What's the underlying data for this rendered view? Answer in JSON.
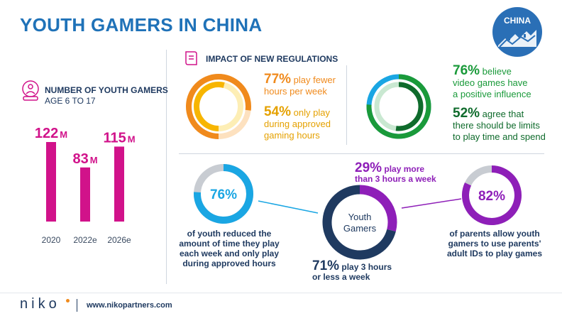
{
  "header": {
    "title": "YOUTH GAMERS IN CHINA",
    "badge": "CHINA"
  },
  "youth_count": {
    "heading": "NUMBER OF YOUTH GAMERS",
    "subheading": "AGE 6 TO 17"
  },
  "regulations": {
    "heading": "IMPACT OF NEW REGULATIONS",
    "stat1_pct": "77%",
    "stat1_text_a": "play fewer",
    "stat1_text_b": "hours per week",
    "stat2_pct": "54%",
    "stat2_text_a": "only play",
    "stat2_text_b": "during approved",
    "stat2_text_c": "gaming hours"
  },
  "influence": {
    "stat1_pct": "76%",
    "stat1_text_a": "believe",
    "stat1_text_b": "video games have",
    "stat1_text_c": "a positive influence",
    "stat2_pct": "52%",
    "stat2_text_a": "agree that",
    "stat2_text_b": "there should be limits",
    "stat2_text_c": "to play time and spend"
  },
  "reduced": {
    "pct": "76%",
    "text_a": "of youth reduced the",
    "text_b": "amount of time they play",
    "text_c": "each week and only play",
    "text_d": "during approved hours"
  },
  "youth_gamers": {
    "center_a": "Youth",
    "center_b": "Gamers",
    "top_pct": "29%",
    "top_text_a": "play more",
    "top_text_b": "than 3 hours a week",
    "bottom_pct": "71%",
    "bottom_text_a": "play 3 hours",
    "bottom_text_b": "or less a week"
  },
  "parents": {
    "pct": "82%",
    "text_a": "of parents allow youth",
    "text_b": "gamers to use parents'",
    "text_c": "adult IDs to play games"
  },
  "footer": {
    "brand": "NIKO",
    "url": "www.nikopartners.com"
  },
  "colors": {
    "magenta": "#d1128a",
    "orange": "#f08a1c",
    "yellow": "#f7b500",
    "blue": "#1aa6e3",
    "green": "#1a9a3a",
    "dark_green": "#0f6b2c",
    "purple": "#8e1fb8",
    "navy": "#1f3a60",
    "grey": "#c8ccd2"
  },
  "chart_data": [
    {
      "type": "bar",
      "title": "NUMBER OF YOUTH GAMERS",
      "subtitle": "AGE 6 TO 17",
      "categories": [
        "2020",
        "2022e",
        "2026e"
      ],
      "values": [
        122,
        83,
        115
      ],
      "value_labels": [
        "122",
        "83",
        "115"
      ],
      "unit": "M",
      "ylim": [
        0,
        122
      ]
    },
    {
      "type": "pie",
      "title": "IMPACT OF NEW REGULATIONS",
      "series": [
        {
          "name": "play fewer hours per week",
          "value": 77
        },
        {
          "name": "only play during approved gaming hours",
          "value": 54
        }
      ]
    },
    {
      "type": "pie",
      "series": [
        {
          "name": "believe video games have a positive influence",
          "value": 76
        },
        {
          "name": "agree that there should be limits to play time and spend",
          "value": 52
        }
      ]
    },
    {
      "type": "pie",
      "series": [
        {
          "name": "of youth reduced the amount of time they play each week and only play during approved hours",
          "value": 76
        }
      ]
    },
    {
      "type": "pie",
      "title": "Youth Gamers",
      "series": [
        {
          "name": "play more than 3 hours a week",
          "value": 29
        },
        {
          "name": "play 3 hours or less a week",
          "value": 71
        }
      ]
    },
    {
      "type": "pie",
      "series": [
        {
          "name": "of parents allow youth gamers to use parents' adult IDs to play games",
          "value": 82
        }
      ]
    }
  ]
}
